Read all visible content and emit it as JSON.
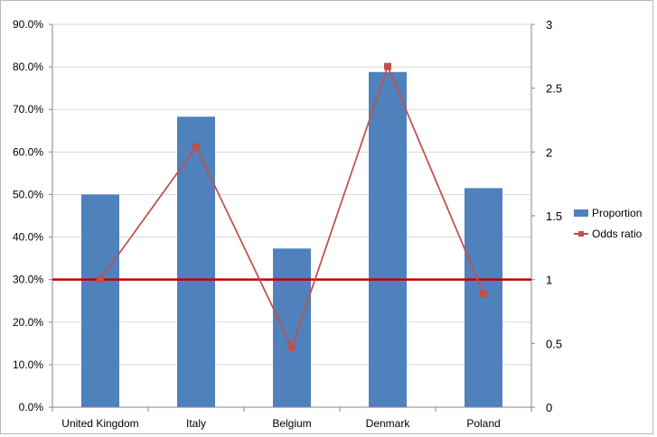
{
  "chart_data": {
    "type": "bar",
    "categories": [
      "United Kingdom",
      "Italy",
      "Belgium",
      "Denmark",
      "Poland"
    ],
    "series": [
      {
        "name": "Proportion",
        "kind": "bar",
        "axis": "left",
        "color": "#4f81bd",
        "values": [
          0.5,
          0.683,
          0.373,
          0.788,
          0.515
        ]
      },
      {
        "name": "Odds ratio",
        "kind": "line",
        "marker": "square",
        "axis": "right",
        "color": "#c0504d",
        "values": [
          1.0,
          2.04,
          0.47,
          2.67,
          0.89
        ]
      }
    ],
    "reference_line": {
      "axis": "right",
      "value": 1,
      "color": "#c00000"
    },
    "ylim_left": [
      0,
      0.9
    ],
    "ylim_right": [
      0,
      3
    ],
    "y_left_ticks": [
      {
        "value": 0,
        "label": "0.0%"
      },
      {
        "value": 0.1,
        "label": "10.0%"
      },
      {
        "value": 0.2,
        "label": "20.0%"
      },
      {
        "value": 0.3,
        "label": "30.0%"
      },
      {
        "value": 0.4,
        "label": "40.0%"
      },
      {
        "value": 0.5,
        "label": "50.0%"
      },
      {
        "value": 0.6,
        "label": "60.0%"
      },
      {
        "value": 0.7,
        "label": "70.0%"
      },
      {
        "value": 0.8,
        "label": "80.0%"
      },
      {
        "value": 0.9,
        "label": "90.0%"
      }
    ],
    "y_right_ticks": [
      {
        "value": 0,
        "label": "0"
      },
      {
        "value": 0.5,
        "label": "0.5"
      },
      {
        "value": 1,
        "label": "1"
      },
      {
        "value": 1.5,
        "label": "1.5"
      },
      {
        "value": 2,
        "label": "2"
      },
      {
        "value": 2.5,
        "label": "2.5"
      },
      {
        "value": 3,
        "label": "3"
      }
    ],
    "grid": true,
    "legend_position": "right",
    "title": "",
    "xlabel": "",
    "ylabel": ""
  }
}
